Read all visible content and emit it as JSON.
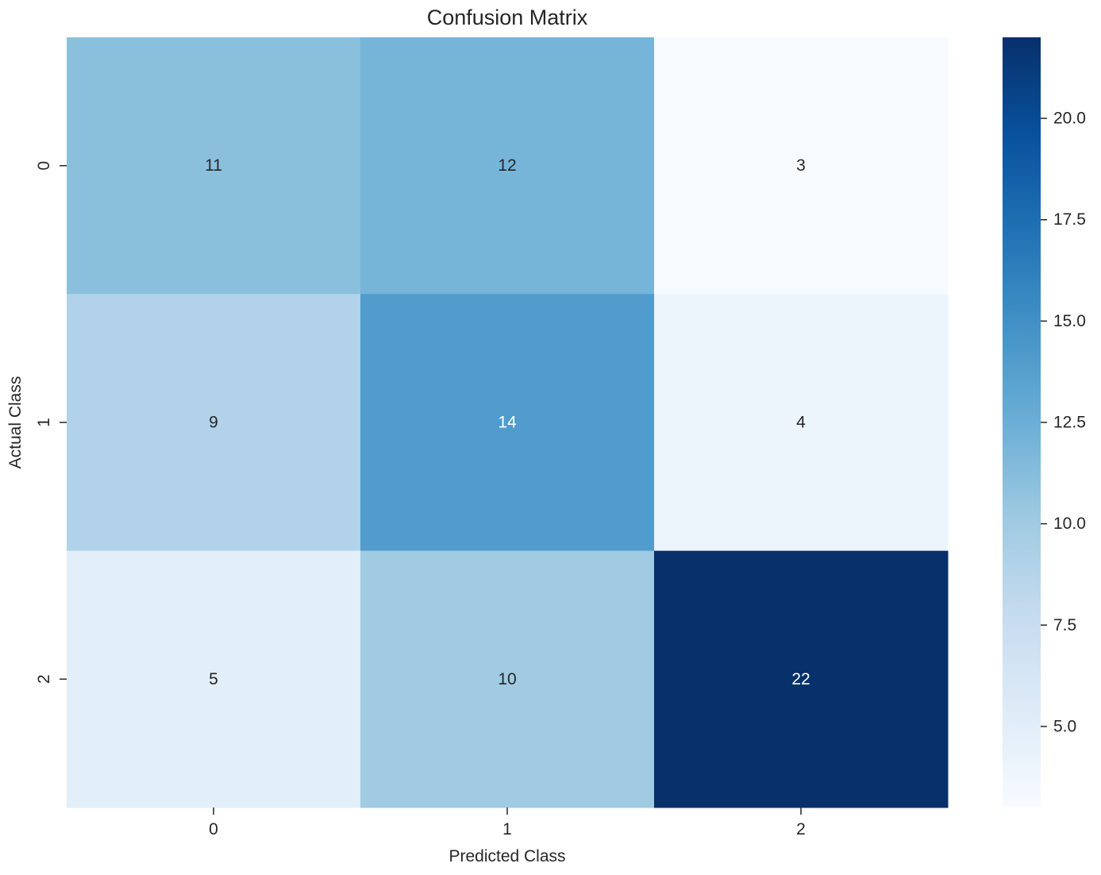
{
  "chart_data": {
    "type": "heatmap",
    "title": "Confusion Matrix",
    "xlabel": "Predicted Class",
    "ylabel": "Actual Class",
    "x_categories": [
      "0",
      "1",
      "2"
    ],
    "y_categories": [
      "0",
      "1",
      "2"
    ],
    "values": [
      [
        11,
        12,
        3
      ],
      [
        9,
        14,
        4
      ],
      [
        5,
        10,
        22
      ]
    ],
    "colormap": "Blues",
    "vmin": 3,
    "vmax": 22,
    "colorbar": {
      "ticks": [
        5.0,
        7.5,
        10.0,
        12.5,
        15.0,
        17.5,
        20.0
      ],
      "tick_labels": [
        "5.0",
        "7.5",
        "10.0",
        "12.5",
        "15.0",
        "17.5",
        "20.0"
      ]
    },
    "annotations": true,
    "grid": false,
    "annotation_color_light": "#ffffff",
    "annotation_color_dark": "#262626"
  }
}
